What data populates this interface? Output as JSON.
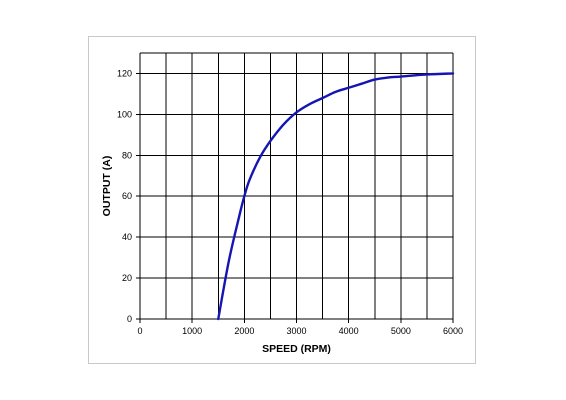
{
  "chart_data": {
    "type": "line",
    "title": "",
    "xlabel": "SPEED (RPM)",
    "ylabel": "OUTPUT (A)",
    "xlim": [
      0,
      6000
    ],
    "ylim": [
      0,
      130
    ],
    "x_ticks": [
      0,
      1000,
      2000,
      3000,
      4000,
      5000,
      6000
    ],
    "y_ticks": [
      0,
      20,
      40,
      60,
      80,
      100,
      120
    ],
    "x_tick_labels": [
      "0",
      "1000",
      "2000",
      "3000",
      "4000",
      "5000",
      "6000"
    ],
    "y_tick_labels": [
      "0",
      "20",
      "40",
      "60",
      "80",
      "100",
      "120"
    ],
    "x_gridlines": [
      0,
      500,
      1000,
      1500,
      2000,
      2500,
      3000,
      3500,
      4000,
      4500,
      5000,
      5500,
      6000
    ],
    "grid": true,
    "series": [
      {
        "color": "#1515b4",
        "x": [
          1500,
          1700,
          1900,
          2000,
          2100,
          2300,
          2500,
          2750,
          3000,
          3250,
          3500,
          3750,
          4000,
          4250,
          4500,
          4750,
          5000,
          5500,
          6000
        ],
        "y": [
          0,
          28,
          50,
          60,
          68,
          79,
          87,
          95,
          101,
          105,
          108,
          111,
          113,
          115,
          117,
          118,
          118.5,
          119.5,
          120
        ]
      }
    ]
  }
}
